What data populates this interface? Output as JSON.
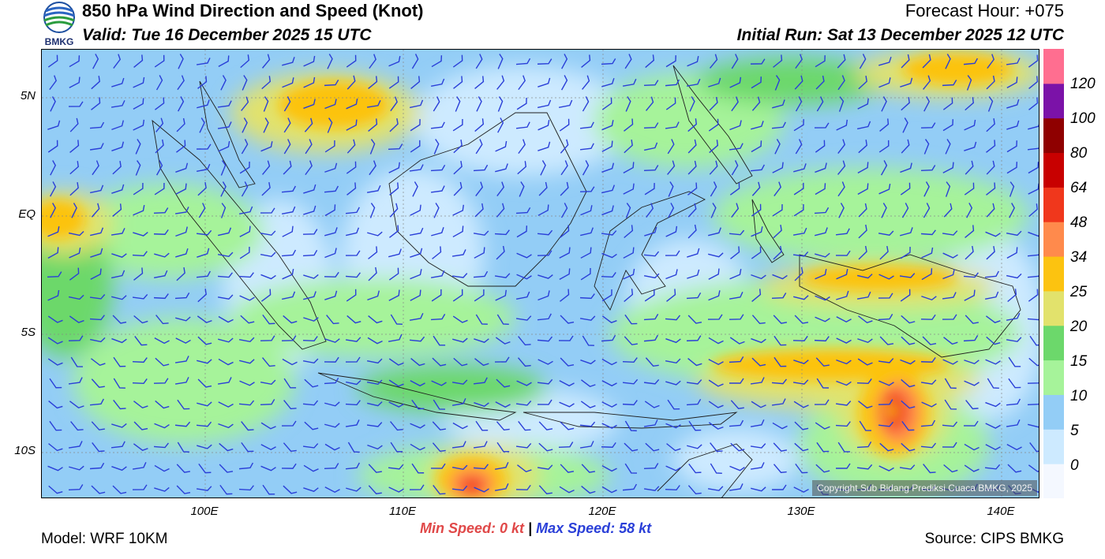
{
  "header": {
    "title": "850 hPa Wind Direction and Speed (Knot)",
    "valid": "Valid: Tue 16 December 2025 15 UTC",
    "forecast_hour": "Forecast Hour: +075",
    "initial_run": "Initial Run: Sat 13 December 2025 12 UTC",
    "logo_text": "BMKG"
  },
  "map": {
    "lat_labels": [
      "5N",
      "EQ",
      "5S",
      "10S"
    ],
    "lon_labels": [
      "100E",
      "110E",
      "120E",
      "130E",
      "140E"
    ],
    "copyright": "Copyright Sub Bidang Prediksi Cuaca BMKG, 2025"
  },
  "colorbar": {
    "labels": [
      "120",
      "100",
      "80",
      "64",
      "48",
      "34",
      "25",
      "20",
      "15",
      "10",
      "5",
      "0"
    ],
    "colors": [
      "#f4f8ff",
      "#cdeaff",
      "#93cdf6",
      "#a6f39a",
      "#6cd86b",
      "#e2e26c",
      "#fcc310",
      "#ff8a4c",
      "#f0371c",
      "#c80000",
      "#8f0000",
      "#7b12a8",
      "#ff6e90"
    ]
  },
  "footer": {
    "model": "Model: WRF 10KM",
    "source": "Source: CIPS BMKG",
    "min_speed": "Min Speed:   0 kt",
    "separator": "|",
    "max_speed": "Max Speed:  58 kt"
  }
}
